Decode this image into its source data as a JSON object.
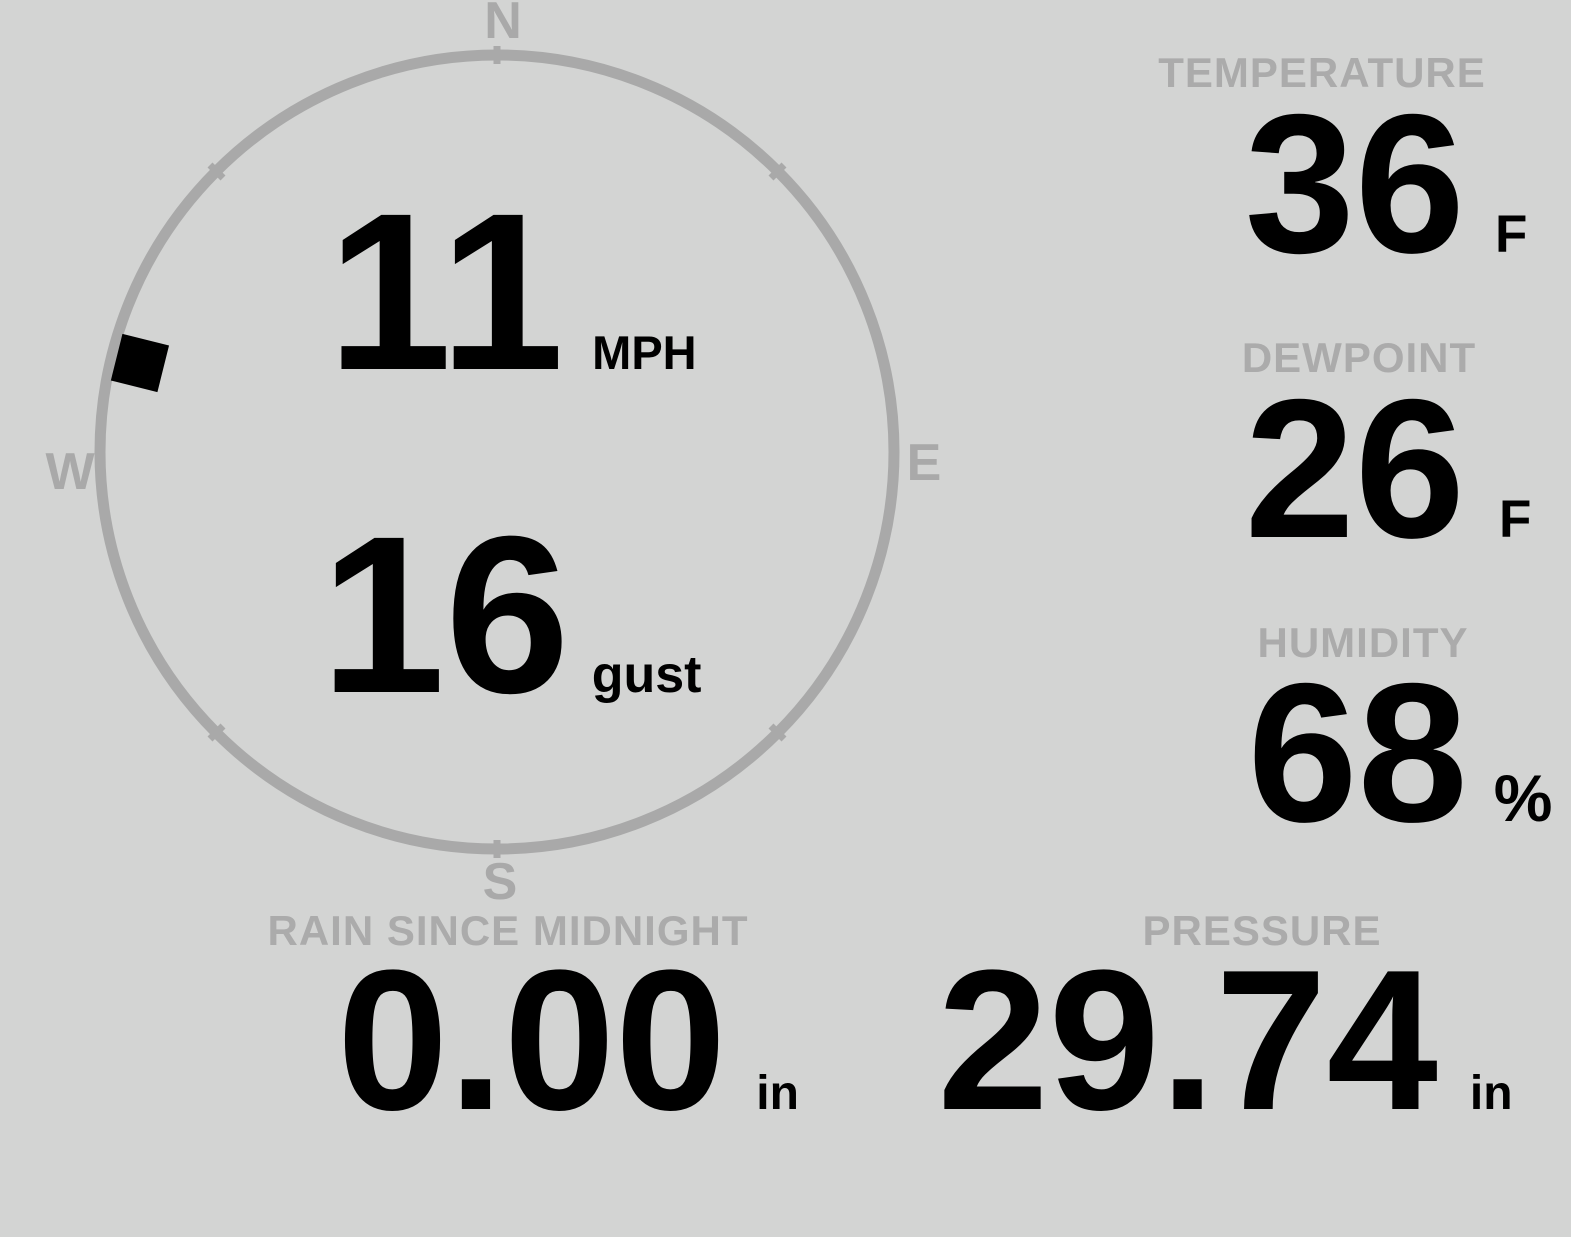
{
  "compass": {
    "directions": {
      "north": "N",
      "east": "E",
      "south": "S",
      "west": "W"
    },
    "wind_speed": {
      "value": "11",
      "unit": "MPH"
    },
    "wind_gust": {
      "value": "16",
      "unit": "gust"
    },
    "wind_direction_deg": 284,
    "ring_color": "#a9a9a9",
    "marker_color": "#000000"
  },
  "stats": {
    "temperature": {
      "label": "TEMPERATURE",
      "value": "36",
      "unit": "F"
    },
    "dewpoint": {
      "label": "DEWPOINT",
      "value": "26",
      "unit": "F"
    },
    "humidity": {
      "label": "HUMIDITY",
      "value": "68",
      "unit": "%"
    },
    "rain": {
      "label": "RAIN SINCE MIDNIGHT",
      "value": "0.00",
      "unit": "in"
    },
    "pressure": {
      "label": "PRESSURE",
      "value": "29.74",
      "unit": "in"
    }
  },
  "colors": {
    "background": "#d3d4d3",
    "label_gray": "#ababab",
    "value_black": "#000000"
  }
}
